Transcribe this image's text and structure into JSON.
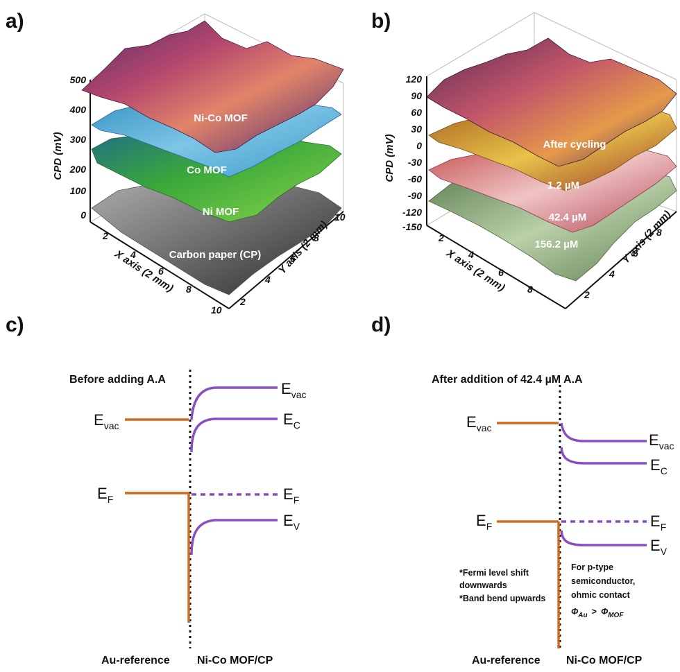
{
  "panels": {
    "a": {
      "letter": "a)",
      "z_axis_title": "CPD (mV)",
      "z_ticks": [
        "500",
        "400",
        "300",
        "200",
        "100",
        "0"
      ],
      "x_axis_title": "X axis (2 mm)",
      "x_ticks": [
        "2",
        "4",
        "6",
        "8",
        "10"
      ],
      "y_axis_title": "Y axis (2 mm)",
      "y_ticks": [
        "2",
        "4",
        "6",
        "8",
        "10"
      ],
      "surfaces": [
        {
          "label": "Ni-Co MOF",
          "color": "#8e3a6a"
        },
        {
          "label": "Co MOF",
          "color": "#4aa6cf"
        },
        {
          "label": "Ni MOF",
          "color": "#3fa83a"
        },
        {
          "label": "Carbon paper (CP)",
          "color": "#7d7d7d"
        }
      ]
    },
    "b": {
      "letter": "b)",
      "z_axis_title": "CPD (mV)",
      "z_ticks": [
        "120",
        "90",
        "60",
        "30",
        "0",
        "-30",
        "-60",
        "-90",
        "-120",
        "-150"
      ],
      "x_axis_title": "X axis (2 mm)",
      "x_ticks": [
        "2",
        "4",
        "6",
        "8"
      ],
      "y_axis_title": "Y axis (2 mm)",
      "y_ticks": [
        "2",
        "4",
        "6",
        "8"
      ],
      "surfaces": [
        {
          "label": "After cycling",
          "color": "#6b2f5e"
        },
        {
          "label": "1.2 µM",
          "color": "#d9a33a"
        },
        {
          "label": "42.4 µM",
          "color": "#d58a92"
        },
        {
          "label": "156.2 µM",
          "color": "#8fae82"
        }
      ]
    },
    "c": {
      "letter": "c)",
      "heading": "Before adding A.A",
      "e_vac_left": {
        "main": "E",
        "sub": "vac"
      },
      "e_vac_right": {
        "main": "E",
        "sub": "vac"
      },
      "e_c": {
        "main": "E",
        "sub": "C"
      },
      "e_f_left": {
        "main": "E",
        "sub": "F"
      },
      "e_f_right": {
        "main": "E",
        "sub": "F"
      },
      "e_v": {
        "main": "E",
        "sub": "V"
      },
      "left_label": "Au-reference",
      "right_label": "Ni-Co MOF/CP",
      "left_color": "#d2691e",
      "right_color": "#8a4fbf"
    },
    "d": {
      "letter": "d)",
      "heading": "After addition of 42.4 µM A.A",
      "e_vac_left": {
        "main": "E",
        "sub": "vac"
      },
      "e_vac_right": {
        "main": "E",
        "sub": "vac"
      },
      "e_c": {
        "main": "E",
        "sub": "C"
      },
      "e_f_left": {
        "main": "E",
        "sub": "F"
      },
      "e_f_right": {
        "main": "E",
        "sub": "F"
      },
      "e_v": {
        "main": "E",
        "sub": "V"
      },
      "left_label": "Au-reference",
      "right_label": "Ni-Co MOF/CP",
      "notes_left": [
        "*Fermi level shift",
        "downwards",
        "*Band bend upwards"
      ],
      "notes_right": [
        "For p-type",
        "semiconductor,",
        "ohmic contact"
      ],
      "phi_au": {
        "main": "Φ",
        "sub": "Au"
      },
      "phi_gt": ">",
      "phi_mof": {
        "main": "Φ",
        "sub": "MOF"
      }
    }
  }
}
